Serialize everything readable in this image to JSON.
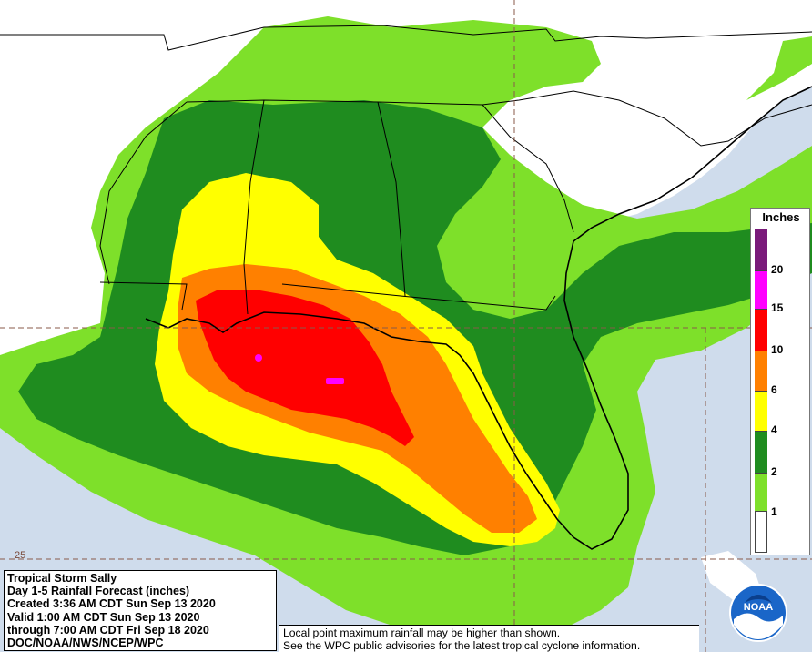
{
  "info": {
    "line1": "Tropical Storm Sally",
    "line2": "Day 1-5 Rainfall Forecast (inches)",
    "line3": "Created 3:36 AM CDT Sun Sep 13 2020",
    "line4": "Valid 1:00 AM CDT Sun Sep 13 2020",
    "line5": "through 7:00 AM CDT Fri Sep 18 2020",
    "line6": "DOC/NOAA/NWS/NCEP/WPC"
  },
  "note": {
    "line1": "Local point maximum rainfall may be higher than shown.",
    "line2": "See the WPC public advisories for the latest tropical cyclone information."
  },
  "legend": {
    "title": "Inches",
    "labels": [
      "20",
      "15",
      "10",
      "6",
      "4",
      "2",
      "1"
    ],
    "colors": [
      "#7a1a7a",
      "#ff00ff",
      "#ff0000",
      "#ff8000",
      "#ffff00",
      "#1f8c1f",
      "#7ee02a",
      "#ffffff"
    ]
  },
  "lat_label": "25",
  "logo": {
    "text": "NOAA"
  },
  "colors": {
    "water": "#cfdcec",
    "land": "#ffffff",
    "light_green": "#7ee02a",
    "dark_green": "#1f8c1f",
    "yellow": "#ffff00",
    "orange": "#ff8000",
    "red": "#ff0000",
    "magenta": "#ff00ff",
    "purple": "#7a1a7a"
  }
}
